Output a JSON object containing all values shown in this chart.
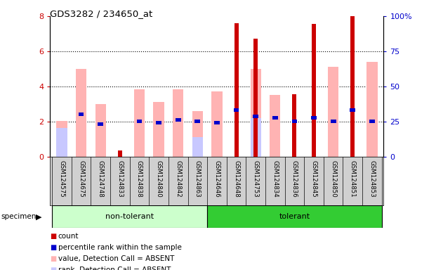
{
  "title": "GDS3282 / 234650_at",
  "categories": [
    "GSM124575",
    "GSM124675",
    "GSM124748",
    "GSM124833",
    "GSM124838",
    "GSM124840",
    "GSM124842",
    "GSM124863",
    "GSM124646",
    "GSM124648",
    "GSM124753",
    "GSM124834",
    "GSM124836",
    "GSM124845",
    "GSM124850",
    "GSM124851",
    "GSM124853"
  ],
  "non_tolerant_count": 8,
  "tolerant_count": 9,
  "red_bars": [
    0,
    0,
    0,
    0.35,
    0,
    0,
    0,
    0,
    0,
    7.6,
    6.7,
    0,
    3.55,
    7.55,
    0,
    8.0,
    0
  ],
  "pink_bars": [
    2.05,
    5.0,
    3.0,
    0,
    3.85,
    3.1,
    3.85,
    2.6,
    3.7,
    0,
    5.0,
    3.5,
    0,
    0,
    5.1,
    0,
    5.4
  ],
  "blue_bars": [
    0,
    2.4,
    1.85,
    0,
    2.0,
    1.95,
    2.1,
    2.0,
    1.95,
    2.65,
    2.3,
    2.2,
    2.0,
    2.2,
    2.0,
    2.65,
    2.0
  ],
  "light_blue_bars": [
    1.65,
    0,
    0,
    0,
    0,
    0,
    0,
    1.1,
    0,
    0,
    2.2,
    0,
    0,
    0,
    0,
    0,
    0
  ],
  "ylim": [
    0,
    8
  ],
  "y2lim": [
    0,
    100
  ],
  "yticks": [
    0,
    2,
    4,
    6,
    8
  ],
  "y2ticks": [
    0,
    25,
    50,
    75,
    100
  ],
  "red_color": "#cc0000",
  "pink_color": "#ffb3b3",
  "blue_color": "#0000cc",
  "light_blue_color": "#c8c8ff",
  "non_tolerant_bg": "#ccffcc",
  "tolerant_bg": "#33cc33",
  "tick_bg": "#d0d0d0",
  "legend_items": [
    "count",
    "percentile rank within the sample",
    "value, Detection Call = ABSENT",
    "rank, Detection Call = ABSENT"
  ],
  "legend_colors": [
    "#cc0000",
    "#0000cc",
    "#ffb3b3",
    "#c8c8ff"
  ]
}
